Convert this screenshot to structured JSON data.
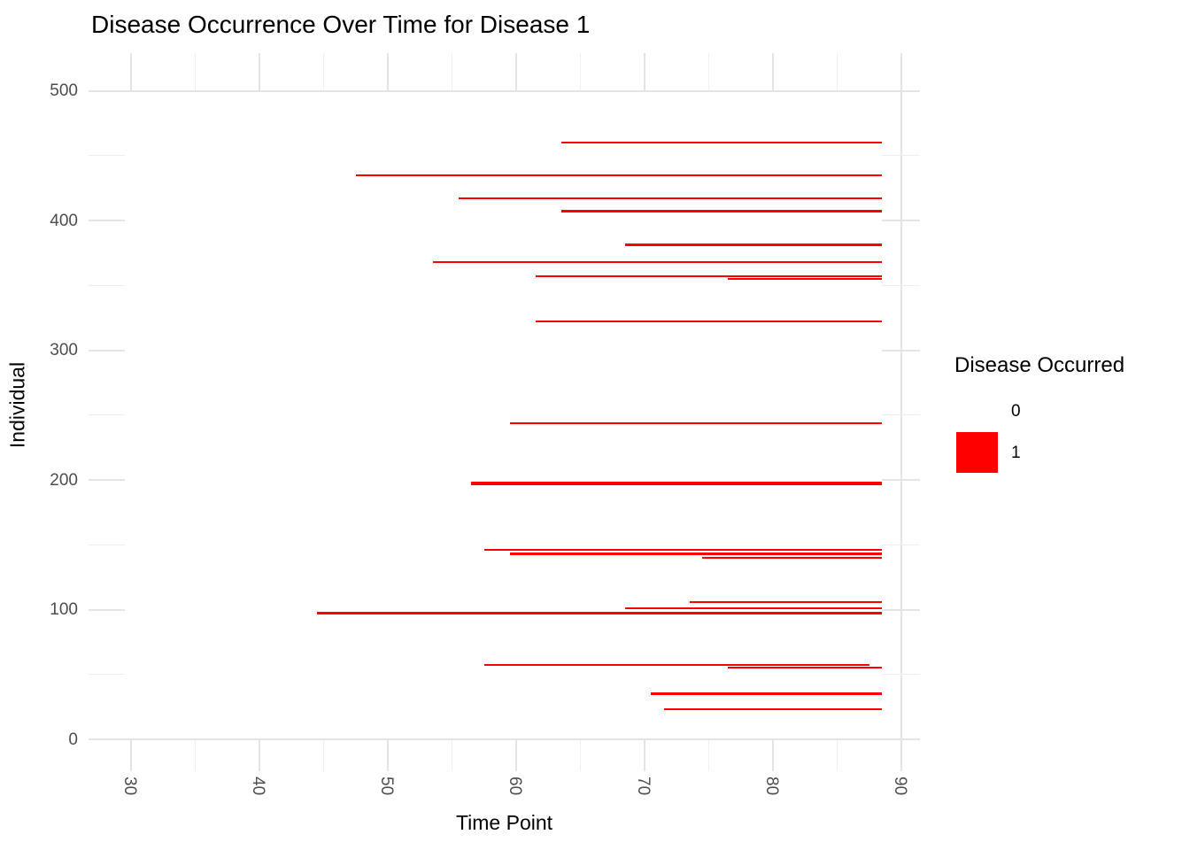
{
  "chart_data": {
    "type": "heatmap",
    "title": "Disease Occurrence Over Time for Disease 1",
    "xlabel": "Time Point",
    "ylabel": "Individual",
    "x_axis": {
      "major_ticks": [
        30,
        40,
        50,
        60,
        70,
        80,
        90
      ],
      "minor_ticks": [
        35,
        45,
        55,
        65,
        75,
        85
      ],
      "range": [
        26.5,
        91.5
      ],
      "tick_label_rotation_deg": 90
    },
    "y_axis": {
      "major_ticks": [
        0,
        100,
        200,
        300,
        400,
        500
      ],
      "minor_ticks": [
        50,
        150,
        250,
        350,
        450
      ],
      "range": [
        -25,
        525
      ]
    },
    "legend": {
      "title": "Disease Occurred",
      "entries": [
        {
          "label": "0",
          "color": "#FFFFFF"
        },
        {
          "label": "1",
          "color": "#FF0000"
        }
      ]
    },
    "colors": {
      "occurrence": "#FF0000",
      "grid_major": "#E4E4E4",
      "grid_minor": "#EFEFEF",
      "tick_text": "#4D4D4D",
      "title_text": "#000000",
      "background": "#FFFFFF"
    },
    "tile_time_range": [
      29.5,
      88.5
    ],
    "tile_individual_range": [
      0.5,
      499.5
    ],
    "segments": [
      {
        "individual": 460,
        "start": 64,
        "end": 88,
        "rows": 1
      },
      {
        "individual": 435,
        "start": 48,
        "end": 88,
        "rows": 1
      },
      {
        "individual": 417,
        "start": 56,
        "end": 88,
        "rows": 1
      },
      {
        "individual": 407,
        "start": 64,
        "end": 88,
        "rows": 2
      },
      {
        "individual": 381,
        "start": 69,
        "end": 88,
        "rows": 2
      },
      {
        "individual": 368,
        "start": 54,
        "end": 88,
        "rows": 1
      },
      {
        "individual": 357,
        "start": 62,
        "end": 88,
        "rows": 1
      },
      {
        "individual": 355,
        "start": 77,
        "end": 88,
        "rows": 1
      },
      {
        "individual": 322,
        "start": 62,
        "end": 88,
        "rows": 1
      },
      {
        "individual": 244,
        "start": 60,
        "end": 88,
        "rows": 1
      },
      {
        "individual": 197,
        "start": 57,
        "end": 88,
        "rows": 3
      },
      {
        "individual": 146,
        "start": 58,
        "end": 88,
        "rows": 1
      },
      {
        "individual": 143,
        "start": 60,
        "end": 88,
        "rows": 2
      },
      {
        "individual": 140,
        "start": 75,
        "end": 88,
        "rows": 1
      },
      {
        "individual": 106,
        "start": 74,
        "end": 88,
        "rows": 1
      },
      {
        "individual": 101,
        "start": 69,
        "end": 88,
        "rows": 1
      },
      {
        "individual": 97,
        "start": 45,
        "end": 88,
        "rows": 2
      },
      {
        "individual": 57,
        "start": 58,
        "end": 87,
        "rows": 1
      },
      {
        "individual": 55,
        "start": 77,
        "end": 88,
        "rows": 1
      },
      {
        "individual": 35,
        "start": 71,
        "end": 88,
        "rows": 2
      },
      {
        "individual": 23,
        "start": 72,
        "end": 88,
        "rows": 1
      }
    ]
  }
}
